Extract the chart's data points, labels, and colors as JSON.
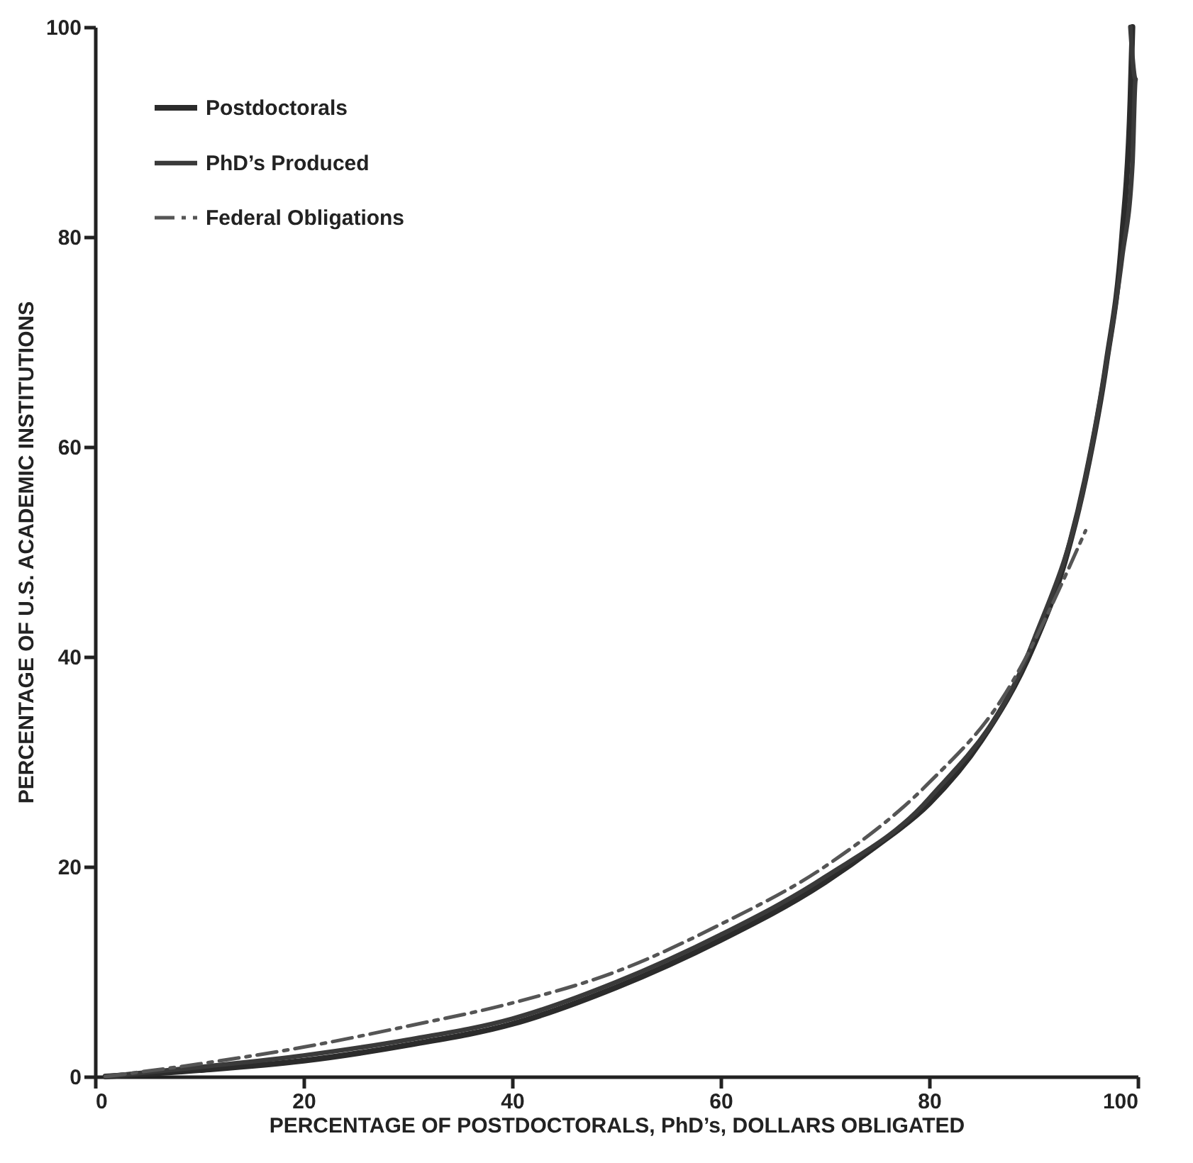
{
  "chart_data": {
    "type": "line",
    "xlabel": "PERCENTAGE OF POSTDOCTORALS, PhD’s, DOLLARS OBLIGATED",
    "ylabel": "PERCENTAGE OF U.S. ACADEMIC INSTITUTIONS",
    "xlim": [
      0,
      100
    ],
    "ylim": [
      0,
      100
    ],
    "xticks": [
      0,
      20,
      40,
      60,
      80,
      100
    ],
    "yticks": [
      0,
      20,
      40,
      60,
      80,
      100
    ],
    "grid": false,
    "legend": "top left",
    "series": [
      {
        "name": "Postdoctorals",
        "color": "#2b2b2b",
        "line_style": "solid",
        "x": [
          1,
          10,
          20,
          30,
          40,
          50,
          60,
          70,
          75,
          80,
          85,
          90,
          93,
          95,
          97,
          98.5,
          99.3,
          99.5
        ],
        "values": [
          0,
          0.6,
          1.5,
          3,
          5,
          8.5,
          13,
          18.5,
          22,
          26,
          32,
          41,
          49,
          57,
          68,
          80,
          93,
          100
        ]
      },
      {
        "name": "PhD’s Produced",
        "color": "#3a3a3a",
        "line_style": "solid",
        "x": [
          1,
          10,
          20,
          30,
          40,
          50,
          60,
          70,
          80,
          90,
          95,
          97,
          98.5,
          99.5,
          99.8,
          99.3
        ],
        "values": [
          0,
          0.9,
          2,
          3.5,
          5.5,
          9,
          13.5,
          19,
          26.5,
          41.5,
          57,
          68,
          78,
          87,
          95,
          100
        ]
      },
      {
        "name": "Federal Obligations",
        "color": "#555555",
        "line_style": "dashed",
        "x": [
          1,
          10,
          20,
          30,
          40,
          50,
          60,
          70,
          80,
          87,
          95
        ],
        "values": [
          0,
          1.2,
          2.8,
          4.8,
          7,
          10,
          14.5,
          20,
          28,
          36,
          52
        ]
      }
    ]
  }
}
